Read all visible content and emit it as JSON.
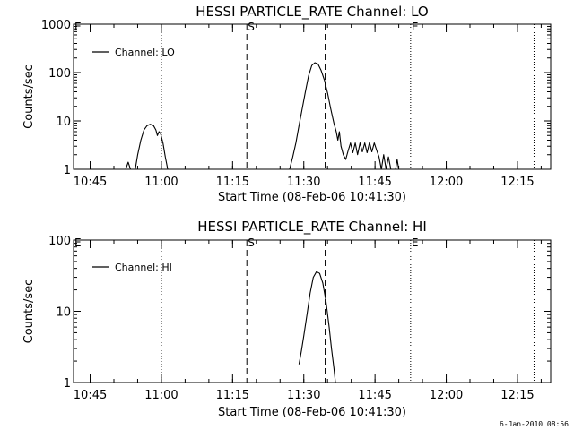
{
  "page": {
    "footer_timestamp": "6-Jan-2010 08:56"
  },
  "chart_data": [
    {
      "type": "line",
      "title": "HESSI PARTICLE_RATE Channel: LO",
      "xlabel": "Start Time (08-Feb-06 10:41:30)",
      "ylabel": "Counts/sec",
      "yscale": "log",
      "ylim": [
        1,
        1000
      ],
      "yticks": [
        {
          "value": 1,
          "label": "1"
        },
        {
          "value": 10,
          "label": "10"
        },
        {
          "value": 100,
          "label": "100"
        },
        {
          "value": 1000,
          "label": "1000"
        }
      ],
      "xlim": [
        "10:41:30",
        "12:22:00"
      ],
      "xticks": [
        "10:45",
        "11:00",
        "11:15",
        "11:30",
        "11:45",
        "12:00",
        "12:15"
      ],
      "legend": {
        "position": "top-left",
        "label": "Channel: LO"
      },
      "series": [
        {
          "name": "Channel: LO",
          "segments": [
            [
              [
                "10:52:30",
                1
              ],
              [
                "10:53:00",
                1.4
              ],
              [
                "10:53:30",
                1
              ]
            ],
            [
              [
                "10:54:30",
                1
              ],
              [
                "10:55:00",
                2
              ],
              [
                "10:55:40",
                4
              ],
              [
                "10:56:20",
                6.5
              ],
              [
                "10:57:00",
                8
              ],
              [
                "10:57:40",
                8.5
              ],
              [
                "10:58:20",
                8
              ],
              [
                "10:58:50",
                6.5
              ],
              [
                "10:59:10",
                5
              ],
              [
                "10:59:30",
                6
              ],
              [
                "10:59:50",
                5.5
              ],
              [
                "11:00:20",
                3.5
              ],
              [
                "11:00:50",
                1.8
              ],
              [
                "11:01:20",
                1
              ]
            ],
            [
              [
                "11:27:00",
                1
              ],
              [
                "11:27:40",
                1.8
              ],
              [
                "11:28:20",
                3.5
              ],
              [
                "11:29:00",
                8
              ],
              [
                "11:29:40",
                18
              ],
              [
                "11:30:20",
                40
              ],
              [
                "11:31:00",
                85
              ],
              [
                "11:31:40",
                140
              ],
              [
                "11:32:20",
                160
              ],
              [
                "11:33:00",
                150
              ],
              [
                "11:33:40",
                110
              ],
              [
                "11:34:20",
                70
              ],
              [
                "11:35:00",
                38
              ],
              [
                "11:35:40",
                18
              ],
              [
                "11:36:20",
                9
              ],
              [
                "11:36:50",
                6
              ],
              [
                "11:37:10",
                4
              ],
              [
                "11:37:30",
                6
              ],
              [
                "11:37:50",
                3
              ],
              [
                "11:38:20",
                2
              ],
              [
                "11:38:50",
                1.6
              ],
              [
                "11:39:20",
                2.4
              ],
              [
                "11:39:50",
                3.5
              ],
              [
                "11:40:20",
                2.2
              ],
              [
                "11:40:50",
                3.5
              ],
              [
                "11:41:20",
                2
              ],
              [
                "11:41:50",
                3.5
              ],
              [
                "11:42:20",
                2.3
              ],
              [
                "11:42:50",
                3.5
              ],
              [
                "11:43:20",
                2.2
              ],
              [
                "11:43:50",
                3.6
              ],
              [
                "11:44:20",
                2.3
              ],
              [
                "11:44:50",
                3.5
              ],
              [
                "11:45:20",
                2.5
              ],
              [
                "11:45:50",
                1.8
              ],
              [
                "11:46:20",
                1
              ],
              [
                "11:46:50",
                2
              ],
              [
                "11:47:20",
                1
              ],
              [
                "11:47:50",
                1.8
              ],
              [
                "11:48:20",
                1
              ]
            ],
            [
              [
                "11:49:20",
                1
              ],
              [
                "11:49:40",
                1.6
              ],
              [
                "11:50:00",
                1
              ]
            ]
          ]
        }
      ],
      "markers": [
        {
          "type": "dotted",
          "time": "11:00:00"
        },
        {
          "type": "dashed",
          "time": "11:18:00",
          "label": "S"
        },
        {
          "type": "dashed",
          "time": "11:34:30"
        },
        {
          "type": "dotted",
          "time": "11:52:30",
          "label": "E"
        },
        {
          "type": "dotted",
          "time": "12:18:30"
        }
      ],
      "edge_marks": [
        {
          "label": "E",
          "side": "left"
        }
      ]
    },
    {
      "type": "line",
      "title": "HESSI PARTICLE_RATE Channel: HI",
      "xlabel": "Start Time (08-Feb-06 10:41:30)",
      "ylabel": "Counts/sec",
      "yscale": "log",
      "ylim": [
        1,
        100
      ],
      "yticks": [
        {
          "value": 1,
          "label": "1"
        },
        {
          "value": 10,
          "label": "10"
        },
        {
          "value": 100,
          "label": "100"
        }
      ],
      "xlim": [
        "10:41:30",
        "12:22:00"
      ],
      "xticks": [
        "10:45",
        "11:00",
        "11:15",
        "11:30",
        "11:45",
        "12:00",
        "12:15"
      ],
      "legend": {
        "position": "top-left",
        "label": "Channel: HI"
      },
      "series": [
        {
          "name": "Channel: HI",
          "segments": [
            [
              [
                "11:29:00",
                1.8
              ],
              [
                "11:29:30",
                2.8
              ],
              [
                "11:30:00",
                4.5
              ],
              [
                "11:30:40",
                9
              ],
              [
                "11:31:20",
                18
              ],
              [
                "11:32:00",
                30
              ],
              [
                "11:32:40",
                36
              ],
              [
                "11:33:20",
                34
              ],
              [
                "11:34:00",
                25
              ],
              [
                "11:34:40",
                14
              ],
              [
                "11:35:20",
                6
              ],
              [
                "11:35:50",
                3
              ],
              [
                "11:36:20",
                1.6
              ],
              [
                "11:36:40",
                1
              ]
            ]
          ]
        }
      ],
      "markers": [
        {
          "type": "dotted",
          "time": "11:00:00"
        },
        {
          "type": "dashed",
          "time": "11:18:00",
          "label": "S"
        },
        {
          "type": "dashed",
          "time": "11:34:30"
        },
        {
          "type": "dotted",
          "time": "11:52:30",
          "label": "E"
        },
        {
          "type": "dotted",
          "time": "12:18:30"
        }
      ],
      "edge_marks": [
        {
          "label": "E",
          "side": "left"
        }
      ]
    }
  ]
}
